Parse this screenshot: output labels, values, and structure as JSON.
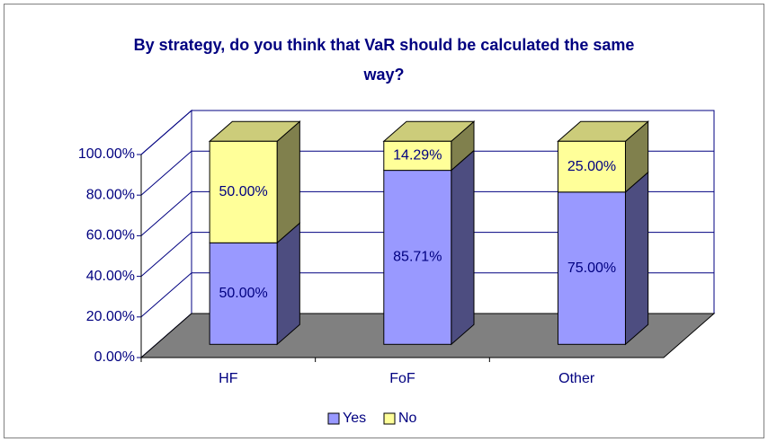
{
  "chart_data": {
    "type": "bar3d_stacked",
    "title": "By strategy, do you think that VaR should be calculated the same way?",
    "categories": [
      "HF",
      "FoF",
      "Other"
    ],
    "series": [
      {
        "name": "Yes",
        "color": "#9999ff",
        "values": [
          50,
          85.71,
          75
        ],
        "value_labels": [
          "50.00%",
          "85.71%",
          "75.00%"
        ]
      },
      {
        "name": "No",
        "color": "#ffff99",
        "values": [
          50,
          14.29,
          25
        ],
        "value_labels": [
          "50.00%",
          "14.29%",
          "25.00%"
        ]
      }
    ],
    "ylim": [
      0,
      100
    ],
    "yticks": [
      {
        "value": 0,
        "label": "0.00%"
      },
      {
        "value": 20,
        "label": "20.00%"
      },
      {
        "value": 40,
        "label": "40.00%"
      },
      {
        "value": 60,
        "label": "60.00%"
      },
      {
        "value": 80,
        "label": "80.00%"
      },
      {
        "value": 100,
        "label": "100.00%"
      }
    ],
    "grid": true,
    "legend": "bottom"
  }
}
